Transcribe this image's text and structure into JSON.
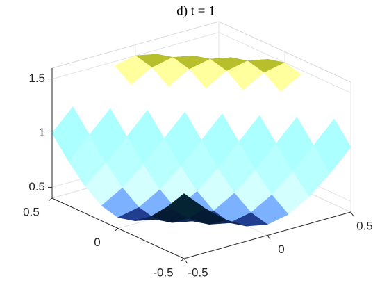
{
  "chart_data": {
    "type": "surface",
    "title": "d) t = 1",
    "x": [
      -0.5,
      -0.375,
      -0.25,
      -0.125,
      0,
      0.125,
      0.25,
      0.375,
      0.5
    ],
    "y": [
      -0.5,
      -0.375,
      -0.25,
      -0.125,
      0,
      0.125,
      0.25,
      0.375,
      0.5
    ],
    "z": [
      [
        1.0,
        0.81,
        0.65,
        0.54,
        0.5,
        0.54,
        0.65,
        0.81,
        1.0
      ],
      [
        0.81,
        0.65,
        0.54,
        0.5,
        0.54,
        0.65,
        0.81,
        1.0,
        1.19
      ],
      [
        0.65,
        0.54,
        0.5,
        0.54,
        0.65,
        0.81,
        1.0,
        1.19,
        1.35
      ],
      [
        0.54,
        0.5,
        0.54,
        0.65,
        0.81,
        1.0,
        1.19,
        1.35,
        1.46
      ],
      [
        0.5,
        0.54,
        0.65,
        0.81,
        1.0,
        1.19,
        1.35,
        1.46,
        1.5
      ],
      [
        0.54,
        0.65,
        0.81,
        1.0,
        1.19,
        1.35,
        1.46,
        1.5,
        1.46
      ],
      [
        0.65,
        0.81,
        1.0,
        1.19,
        1.35,
        1.46,
        1.5,
        1.46,
        1.35
      ],
      [
        0.81,
        1.0,
        1.19,
        1.35,
        1.46,
        1.5,
        1.46,
        1.35,
        1.19
      ],
      [
        1.0,
        1.19,
        1.35,
        1.46,
        1.5,
        1.46,
        1.35,
        1.19,
        1.0
      ]
    ],
    "xlim": [
      -0.5,
      0.5
    ],
    "ylim": [
      -0.5,
      0.5
    ],
    "zlim": [
      0.4,
      1.6
    ],
    "xticks": [
      -0.5,
      0,
      0.5
    ],
    "yticks": [
      -0.5,
      0,
      0.5
    ],
    "zticks": [
      0.5,
      1,
      1.5
    ],
    "grid": true,
    "colormap": "parula"
  }
}
